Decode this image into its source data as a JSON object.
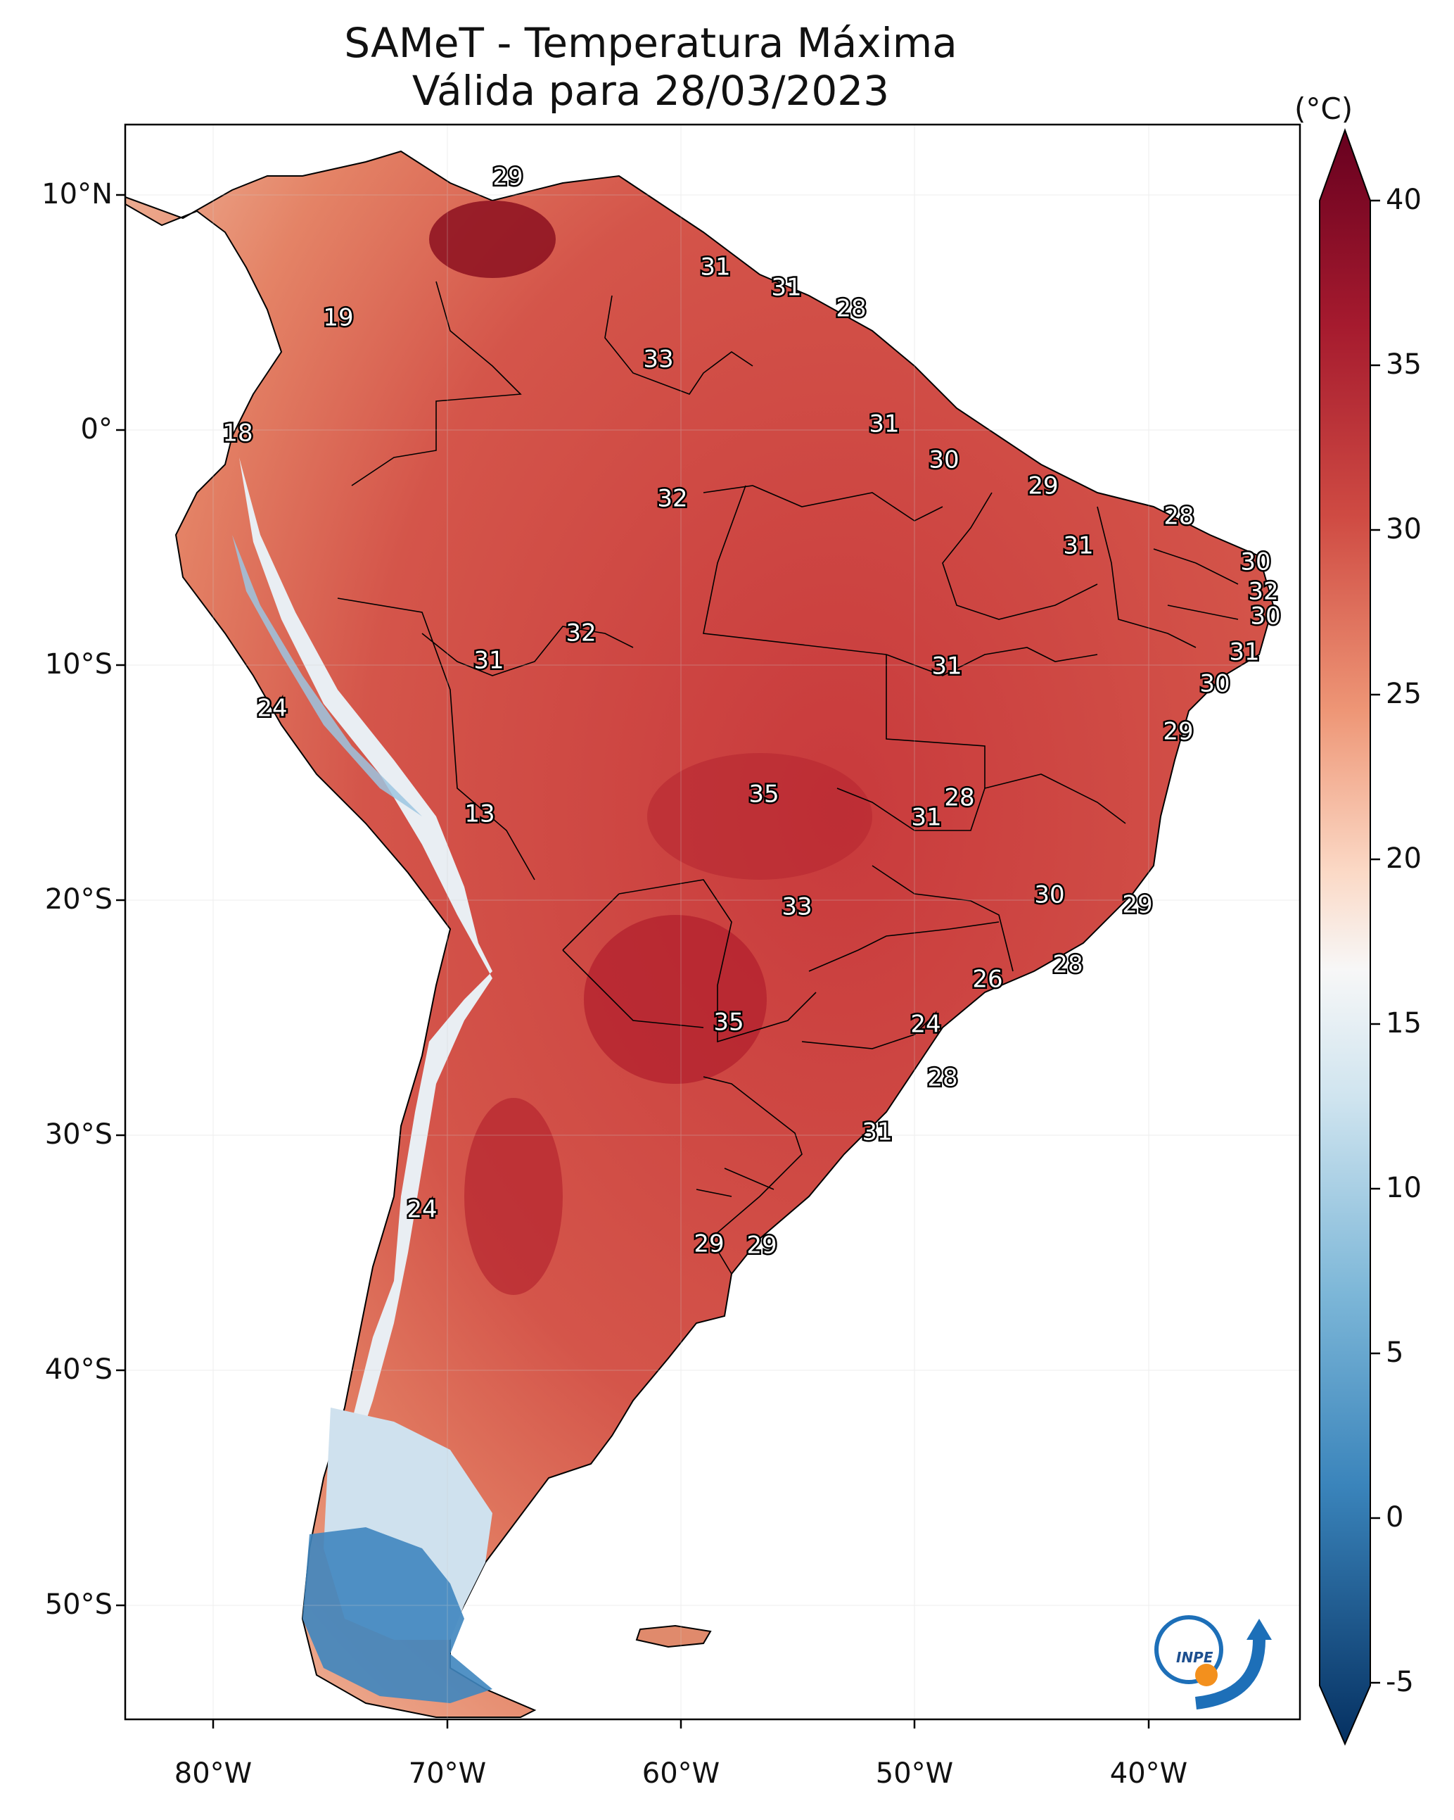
{
  "title": "SAMeT - Temperatura Máxima",
  "subtitle": "Válida para 28/03/2023",
  "colorbar": {
    "unit": "(°C)",
    "ticks": [
      "40",
      "35",
      "30",
      "25",
      "20",
      "15",
      "10",
      "5",
      "0",
      "-5"
    ],
    "range": [
      -5,
      40
    ],
    "colors": {
      "max": "#67001f",
      "warm": "#c4303b",
      "neutral": "#f7f7f7",
      "cool": "#6fa9d0",
      "min": "#053061"
    }
  },
  "axes": {
    "lat_ticks": [
      "10°N",
      "0°",
      "10°S",
      "20°S",
      "30°S",
      "40°S",
      "50°S"
    ],
    "lon_ticks": [
      "80°W",
      "70°W",
      "60°W",
      "50°W",
      "40°W"
    ]
  },
  "station_labels": [
    "29",
    "31",
    "31",
    "28",
    "19",
    "33",
    "18",
    "31",
    "30",
    "29",
    "32",
    "28",
    "31",
    "30",
    "32",
    "30",
    "31",
    "32",
    "31",
    "31",
    "24",
    "30",
    "29",
    "35",
    "28",
    "13",
    "31",
    "30",
    "29",
    "33",
    "28",
    "26",
    "35",
    "24",
    "28",
    "31",
    "24",
    "29",
    "29"
  ],
  "logo": {
    "text": "INPE",
    "icon": "inpe-logo-icon"
  }
}
